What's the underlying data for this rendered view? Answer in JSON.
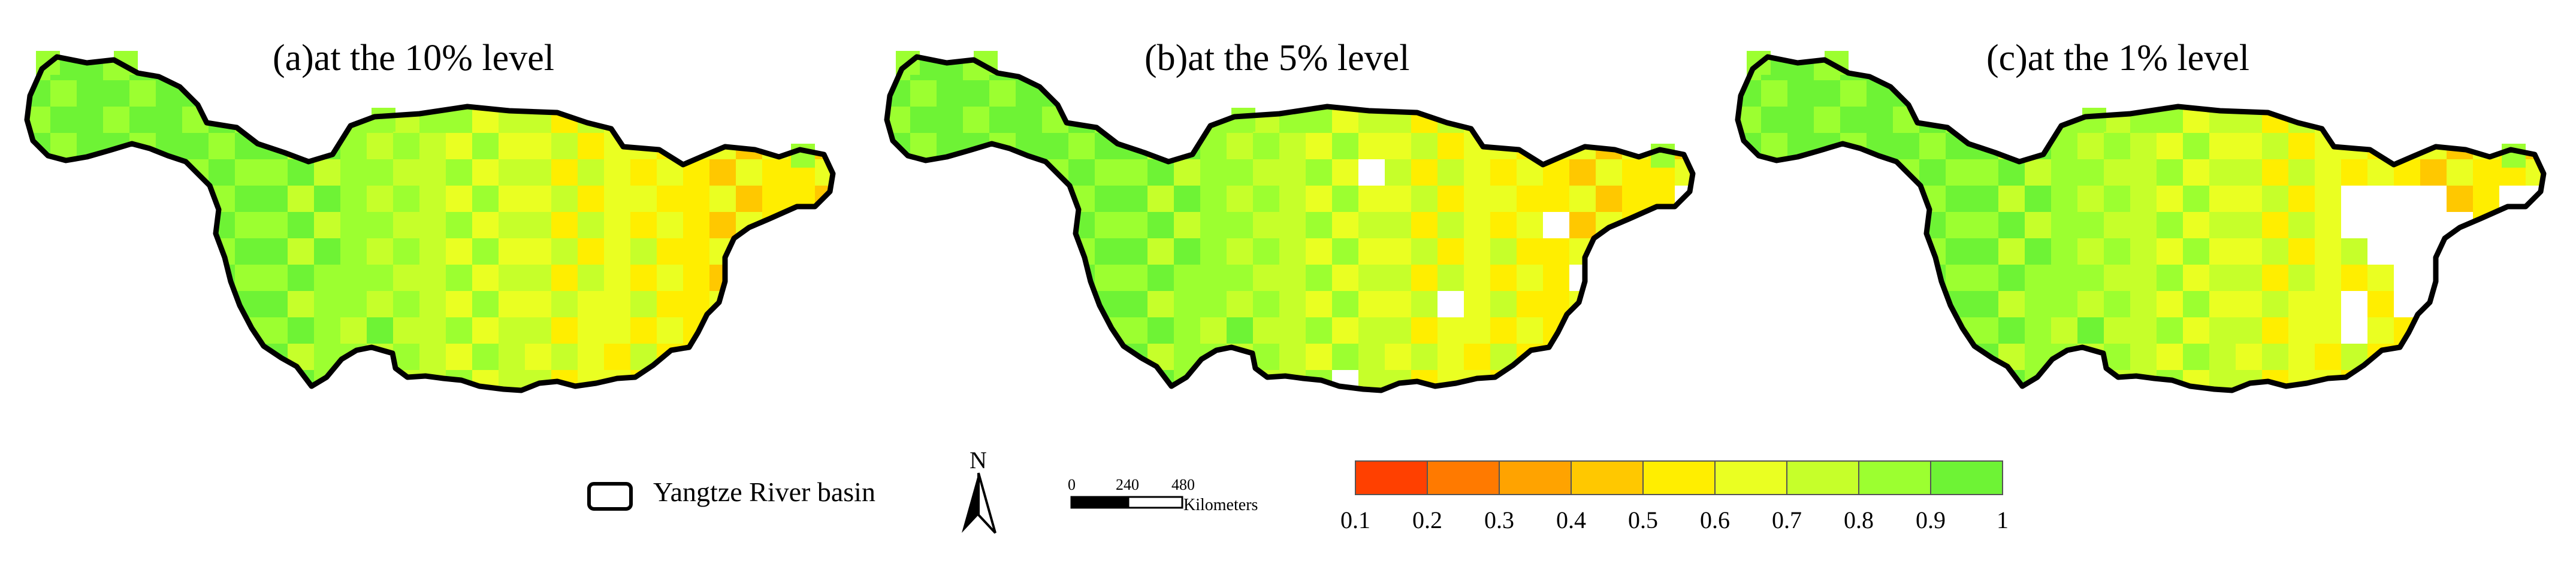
{
  "panels": [
    {
      "title": "(a)at the 10% level"
    },
    {
      "title": "(b)at the 5% level"
    },
    {
      "title": "(c)at the 1% level"
    }
  ],
  "legend": {
    "basin_label": "Yangtze River basin",
    "north_label": "N",
    "scale": {
      "ticks": [
        "0",
        "240",
        "480"
      ],
      "units": "Kilometers"
    },
    "colorbar": {
      "tick_labels": [
        "0.1",
        "0.2",
        "0.3",
        "0.4",
        "0.5",
        "0.6",
        "0.7",
        "0.8",
        "0.9",
        "1"
      ],
      "colors": [
        "#ff4000",
        "#ff7a00",
        "#ffa300",
        "#ffc800",
        "#ffee00",
        "#eaff22",
        "#c6ff2a",
        "#9cff30",
        "#6ef335"
      ]
    }
  },
  "colors": {
    "basin_outline": "#000000",
    "no_data": "#ffffff"
  }
}
